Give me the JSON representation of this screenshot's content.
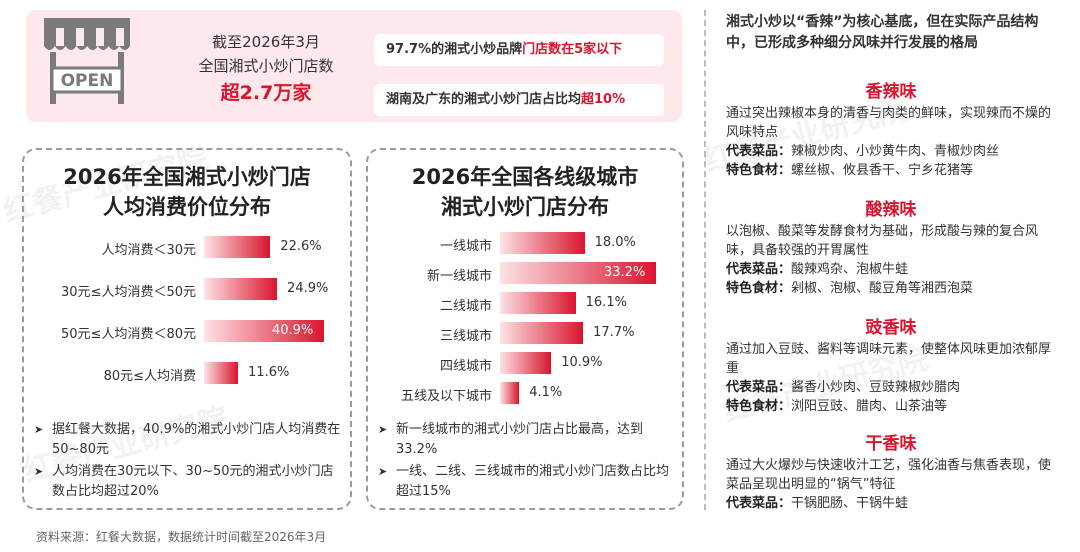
{
  "banner": {
    "stat_line1": "截至2026年3月",
    "stat_line2": "全国湘式小炒门店数",
    "stat_big": "超2.7万家",
    "store_sign": "OPEN",
    "pill1": {
      "pre": "97.7%的湘式小炒品牌",
      "hl": "门店数在5家以下",
      "post": ""
    },
    "pill2": {
      "pre": "湖南及广东的湘式小炒门店占比均",
      "hl": "超10%",
      "post": ""
    }
  },
  "left_panel": {
    "title_line1": "2026年全国湘式小炒门店",
    "title_line2": "人均消费价位分布",
    "bullets": [
      "据红餐大数据，40.9%的湘式小炒门店人均消费在50~80元",
      "人均消费在30元以下、30~50元的湘式小炒门店数占比均超过20%"
    ]
  },
  "mid_panel": {
    "title_line1": "2026年全国各线级城市",
    "title_line2": "湘式小炒门店分布",
    "bullets": [
      "新一线城市的湘式小炒门店占比最高，达到33.2%",
      "一线、二线、三线城市的湘式小炒门店数占比均超过15%"
    ]
  },
  "chart_data": [
    {
      "type": "bar",
      "orientation": "horizontal",
      "title": "2026年全国湘式小炒门店人均消费价位分布",
      "categories": [
        "人均消费＜30元",
        "30元≤人均消费＜50元",
        "50元≤人均消费＜80元",
        "80元≤人均消费"
      ],
      "values": [
        22.6,
        24.9,
        40.9,
        11.6
      ],
      "value_labels": [
        "22.6%",
        "24.9%",
        "40.9%",
        "11.6%"
      ],
      "unit": "%",
      "xlim": [
        0,
        40.9
      ]
    },
    {
      "type": "bar",
      "orientation": "horizontal",
      "title": "2026年全国各线级城市湘式小炒门店分布",
      "categories": [
        "一线城市",
        "新一线城市",
        "二线城市",
        "三线城市",
        "四线城市",
        "五线及以下城市"
      ],
      "values": [
        18.0,
        33.2,
        16.1,
        17.7,
        10.9,
        4.1
      ],
      "value_labels": [
        "18.0%",
        "33.2%",
        "16.1%",
        "17.7%",
        "10.9%",
        "4.1%"
      ],
      "unit": "%",
      "xlim": [
        0,
        33.2
      ]
    }
  ],
  "right_col": {
    "intro": "湘式小炒以“香辣”为核心基底，但在实际产品结构中，已形成多种细分风味并行发展的格局",
    "flavors": [
      {
        "name": "香辣味",
        "desc": "通过突出辣椒本身的清香与肉类的鲜味，实现辣而不燥的风味特点",
        "dish_label": "代表菜品：",
        "dishes": "辣椒炒肉、小炒黄牛肉、青椒炒肉丝",
        "ing_label": "特色食材：",
        "ingredients": "螺丝椒、攸县香干、宁乡花猪等"
      },
      {
        "name": "酸辣味",
        "desc": "以泡椒、酸菜等发酵食材为基础，形成酸与辣的复合风味，具备较强的开胃属性",
        "dish_label": "代表菜品：",
        "dishes": "酸辣鸡杂、泡椒牛蛙",
        "ing_label": "特色食材：",
        "ingredients": "剁椒、泡椒、酸豆角等湘西泡菜"
      },
      {
        "name": "豉香味",
        "desc": "通过加入豆豉、酱料等调味元素，使整体风味更加浓郁厚重",
        "dish_label": "代表菜品：",
        "dishes": "酱香小炒肉、豆豉辣椒炒腊肉",
        "ing_label": "特色食材：",
        "ingredients": "浏阳豆豉、腊肉、山茶油等"
      },
      {
        "name": "干香味",
        "desc": "通过大火爆炒与快速收汁工艺，强化油香与焦香表现，使菜品呈现出明显的“锅气”特征",
        "dish_label": "代表菜品：",
        "dishes": "干锅肥肠、干锅牛蛙",
        "ing_label": "",
        "ingredients": ""
      }
    ]
  },
  "source": "资料来源：红餐大数据，数据统计时间截至2026年3月",
  "watermark": "红餐产业研究院",
  "colors": {
    "accent": "#d9152e",
    "banner_bg": "#fde9ec"
  }
}
